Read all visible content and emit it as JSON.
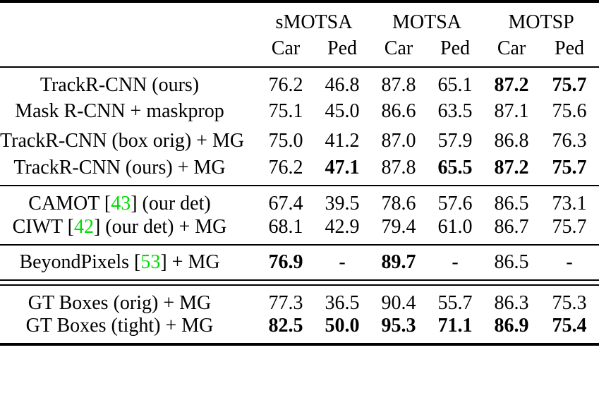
{
  "colors": {
    "text": "#000000",
    "background": "#ffffff",
    "citation_green": "#00DC00"
  },
  "header": {
    "groups": [
      "sMOTSA",
      "MOTSA",
      "MOTSP"
    ],
    "subcolumns": [
      "Car",
      "Ped",
      "Car",
      "Ped",
      "Car",
      "Ped"
    ]
  },
  "rows": [
    {
      "label_pre": "TrackR-CNN (ours)",
      "cite": "",
      "label_post": "",
      "values": [
        "76.2",
        "46.8",
        "87.8",
        "65.1",
        "87.2",
        "75.7"
      ],
      "bold": [
        false,
        false,
        false,
        false,
        true,
        true
      ]
    },
    {
      "label_pre": "Mask R-CNN + maskprop",
      "cite": "",
      "label_post": "",
      "values": [
        "75.1",
        "45.0",
        "86.6",
        "63.5",
        "87.1",
        "75.6"
      ],
      "bold": [
        false,
        false,
        false,
        false,
        false,
        false
      ]
    },
    {
      "label_pre": "TrackR-CNN (box orig) + MG",
      "cite": "",
      "label_post": "",
      "values": [
        "75.0",
        "41.2",
        "87.0",
        "57.9",
        "86.8",
        "76.3"
      ],
      "bold": [
        false,
        false,
        false,
        false,
        false,
        false
      ]
    },
    {
      "label_pre": "TrackR-CNN (ours) + MG",
      "cite": "",
      "label_post": "",
      "values": [
        "76.2",
        "47.1",
        "87.8",
        "65.5",
        "87.2",
        "75.7"
      ],
      "bold": [
        false,
        true,
        false,
        true,
        true,
        true
      ]
    },
    {
      "label_pre": "CAMOT [",
      "cite": "43",
      "label_post": "] (our det)",
      "values": [
        "67.4",
        "39.5",
        "78.6",
        "57.6",
        "86.5",
        "73.1"
      ],
      "bold": [
        false,
        false,
        false,
        false,
        false,
        false
      ]
    },
    {
      "label_pre": "CIWT [",
      "cite": "42",
      "label_post": "] (our det) + MG",
      "values": [
        "68.1",
        "42.9",
        "79.4",
        "61.0",
        "86.7",
        "75.7"
      ],
      "bold": [
        false,
        false,
        false,
        false,
        false,
        false
      ]
    },
    {
      "label_pre": "BeyondPixels [",
      "cite": "53",
      "label_post": "] + MG",
      "values": [
        "76.9",
        "-",
        "89.7",
        "-",
        "86.5",
        "-"
      ],
      "bold": [
        true,
        false,
        true,
        false,
        false,
        false
      ]
    },
    {
      "label_pre": "GT Boxes (orig) + MG",
      "cite": "",
      "label_post": "",
      "values": [
        "77.3",
        "36.5",
        "90.4",
        "55.7",
        "86.3",
        "75.3"
      ],
      "bold": [
        false,
        false,
        false,
        false,
        false,
        false
      ]
    },
    {
      "label_pre": "GT Boxes (tight) + MG",
      "cite": "",
      "label_post": "",
      "values": [
        "82.5",
        "50.0",
        "95.3",
        "71.1",
        "86.9",
        "75.4"
      ],
      "bold": [
        true,
        true,
        true,
        true,
        true,
        true
      ]
    }
  ]
}
